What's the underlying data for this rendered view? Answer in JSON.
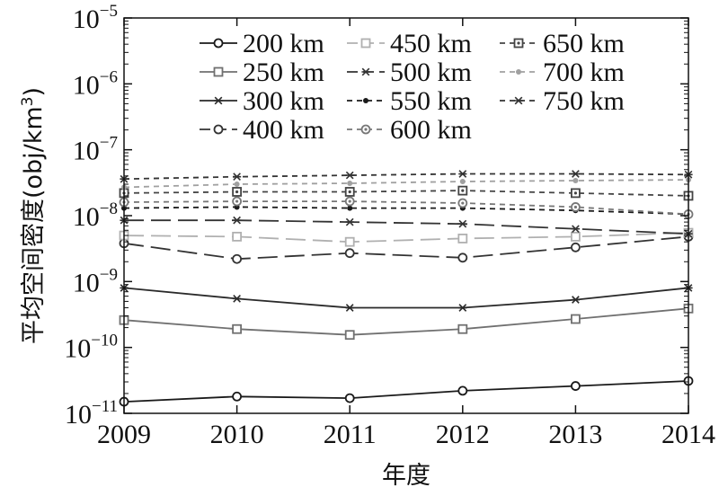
{
  "chart_data": {
    "type": "line",
    "xlabel": "年度",
    "ylabel": "平均空间密度(obj/km³)",
    "ylabel_parts": {
      "text": "平均空间密度(obj/km",
      "exp": "3",
      "close": ")"
    },
    "x": [
      2009,
      2010,
      2011,
      2012,
      2013,
      2014
    ],
    "xlim": [
      2009,
      2014
    ],
    "ylim": [
      1e-11,
      1e-05
    ],
    "yscale": "log",
    "y_ticks": [
      {
        "base": "10",
        "exp": "−11",
        "value": 1e-11
      },
      {
        "base": "10",
        "exp": "−10",
        "value": 1e-10
      },
      {
        "base": "10",
        "exp": "−9",
        "value": 1e-09
      },
      {
        "base": "10",
        "exp": "−8",
        "value": 1e-08
      },
      {
        "base": "10",
        "exp": "−7",
        "value": 1e-07
      },
      {
        "base": "10",
        "exp": "−6",
        "value": 1e-06
      },
      {
        "base": "10",
        "exp": "−5",
        "value": 1e-05
      }
    ],
    "grid": false,
    "legend_position": "top-right",
    "series": [
      {
        "name": "200 km",
        "color": "#1a1a1a",
        "dash": "solid",
        "marker": "circle",
        "values": [
          1.5e-11,
          1.8e-11,
          1.7e-11,
          2.2e-11,
          2.6e-11,
          3.1e-11
        ]
      },
      {
        "name": "250 km",
        "color": "#707070",
        "dash": "solid",
        "marker": "square",
        "values": [
          2.6e-10,
          1.9e-10,
          1.55e-10,
          1.9e-10,
          2.7e-10,
          3.9e-10
        ]
      },
      {
        "name": "300 km",
        "color": "#2a2a2a",
        "dash": "solid",
        "marker": "star",
        "values": [
          8e-10,
          5.5e-10,
          4e-10,
          4e-10,
          5.3e-10,
          8e-10
        ]
      },
      {
        "name": "400 km",
        "color": "#333333",
        "dash": "longdash",
        "marker": "circle",
        "values": [
          3.8e-09,
          2.2e-09,
          2.7e-09,
          2.3e-09,
          3.3e-09,
          4.8e-09
        ]
      },
      {
        "name": "450 km",
        "color": "#b0b0b0",
        "dash": "longdash",
        "marker": "square",
        "values": [
          5e-09,
          4.8e-09,
          4e-09,
          4.5e-09,
          4.8e-09,
          5.5e-09
        ]
      },
      {
        "name": "500 km",
        "color": "#333333",
        "dash": "longdash",
        "marker": "star",
        "values": [
          8.5e-09,
          8.5e-09,
          8e-09,
          7.5e-09,
          6.3e-09,
          5.3e-09
        ]
      },
      {
        "name": "550 km",
        "color": "#1a1a1a",
        "dash": "shortdash",
        "marker": "dot",
        "values": [
          1.3e-08,
          1.35e-08,
          1.3e-08,
          1.3e-08,
          1.2e-08,
          1.05e-08
        ]
      },
      {
        "name": "600 km",
        "color": "#777777",
        "dash": "shortdash",
        "marker": "circledot",
        "values": [
          1.6e-08,
          1.65e-08,
          1.65e-08,
          1.55e-08,
          1.35e-08,
          1.05e-08
        ]
      },
      {
        "name": "650 km",
        "color": "#444444",
        "dash": "shortdash",
        "marker": "squaredot",
        "values": [
          2.2e-08,
          2.3e-08,
          2.3e-08,
          2.4e-08,
          2.2e-08,
          2e-08
        ]
      },
      {
        "name": "700 km",
        "color": "#a0a0a0",
        "dash": "shortdash",
        "marker": "dot",
        "values": [
          2.7e-08,
          3e-08,
          3.1e-08,
          3.3e-08,
          3.4e-08,
          3.5e-08
        ]
      },
      {
        "name": "750 km",
        "color": "#333333",
        "dash": "shortdash",
        "marker": "star",
        "values": [
          3.6e-08,
          3.9e-08,
          4.1e-08,
          4.3e-08,
          4.3e-08,
          4.2e-08
        ]
      }
    ]
  }
}
